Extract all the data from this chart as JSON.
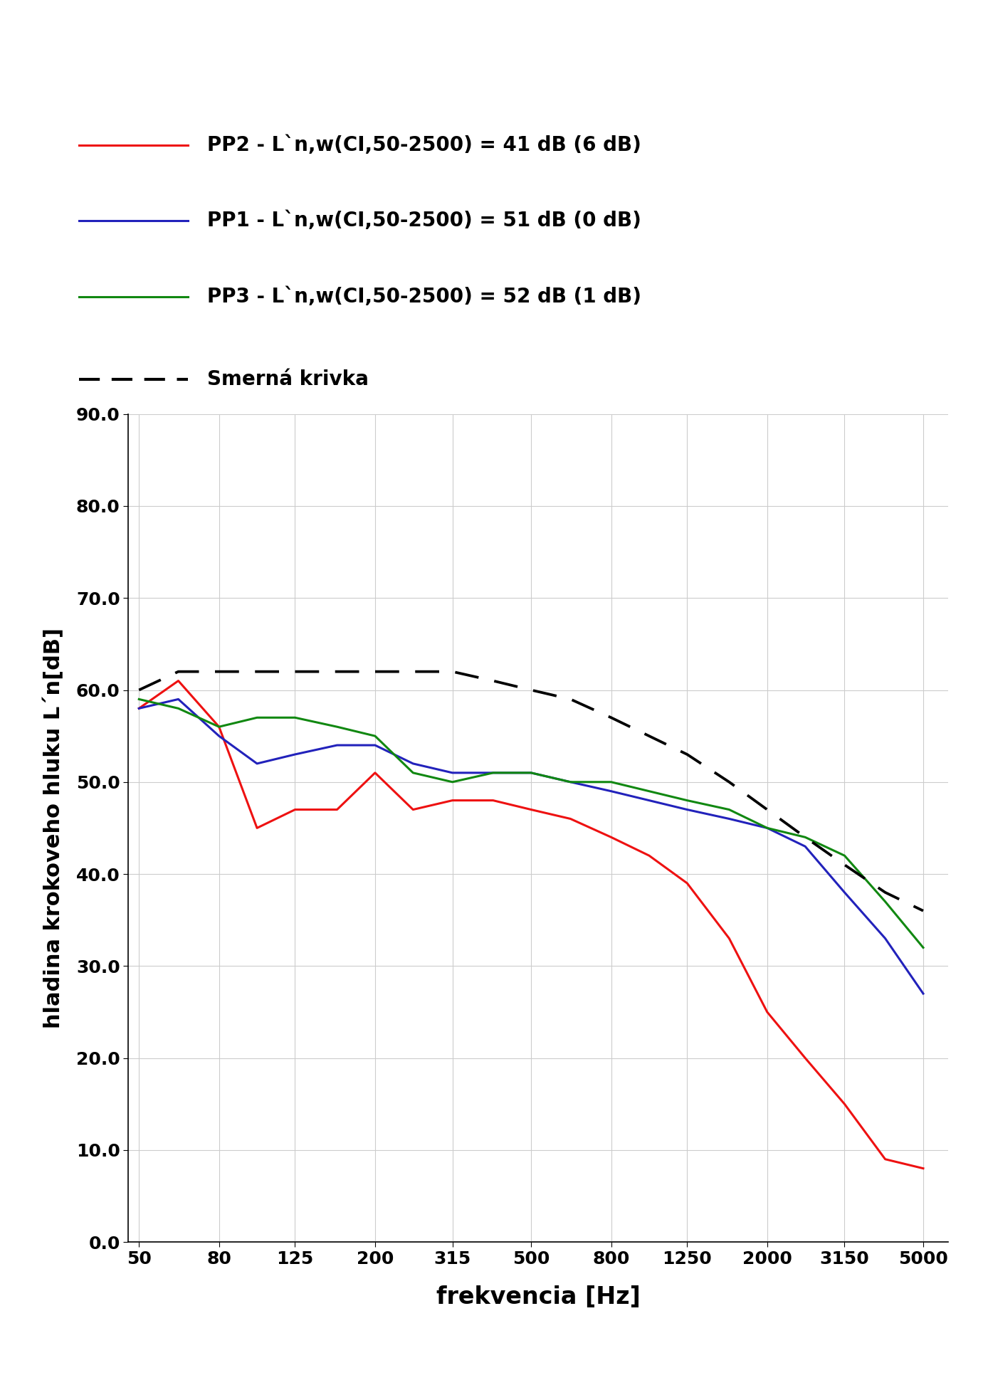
{
  "freqs": [
    50,
    63,
    80,
    100,
    125,
    160,
    200,
    250,
    315,
    400,
    500,
    630,
    800,
    1000,
    1250,
    1600,
    2000,
    2500,
    3150,
    4000,
    5000
  ],
  "PP2": [
    58,
    61,
    56,
    45,
    47,
    47,
    51,
    47,
    48,
    48,
    47,
    46,
    44,
    42,
    39,
    33,
    25,
    20,
    15,
    9,
    8
  ],
  "PP1": [
    58,
    59,
    55,
    52,
    53,
    54,
    54,
    52,
    51,
    51,
    51,
    50,
    49,
    48,
    47,
    46,
    45,
    43,
    38,
    33,
    27
  ],
  "PP3": [
    59,
    58,
    56,
    57,
    57,
    56,
    55,
    51,
    50,
    51,
    51,
    50,
    50,
    49,
    48,
    47,
    45,
    44,
    42,
    37,
    32
  ],
  "smer_freqs": [
    50,
    63,
    80,
    100,
    125,
    160,
    200,
    250,
    315,
    400,
    500,
    630,
    800,
    1000,
    1250,
    1600,
    2000,
    2500,
    3150,
    4000,
    5000
  ],
  "smer": [
    60,
    62,
    62,
    62,
    62,
    62,
    62,
    62,
    62,
    61,
    60,
    59,
    57,
    55,
    53,
    50,
    47,
    44,
    41,
    38,
    36
  ],
  "PP2_label": "PP2 - L`n,w(CI,50-2500) = 41 dB (6 dB)",
  "PP1_label": "PP1 - L`n,w(CI,50-2500) = 51 dB (0 dB)",
  "PP3_label": "PP3 - L`n,w(CI,50-2500) = 52 dB (1 dB)",
  "smer_label": "Smerná krivka",
  "ylabel": "hladina krokoveho hluku L´n[dB]",
  "xlabel": "frekvencia [Hz]",
  "PP2_color": "#ee1111",
  "PP1_color": "#2222bb",
  "PP3_color": "#118811",
  "smer_color": "#000000",
  "ylim": [
    0.0,
    90.0
  ],
  "yticks": [
    0.0,
    10.0,
    20.0,
    30.0,
    40.0,
    50.0,
    60.0,
    70.0,
    80.0,
    90.0
  ],
  "xtick_labels": [
    "50",
    "80",
    "125",
    "200",
    "315",
    "500",
    "800",
    "1250",
    "2000",
    "3150",
    "5000"
  ],
  "xtick_vals": [
    50,
    80,
    125,
    200,
    315,
    500,
    800,
    1250,
    2000,
    3150,
    5000
  ],
  "background_color": "#ffffff",
  "grid_color": "#cccccc",
  "linewidth": 2.2,
  "legend_fontsize": 20,
  "axis_label_fontsize": 22,
  "tick_fontsize": 18
}
